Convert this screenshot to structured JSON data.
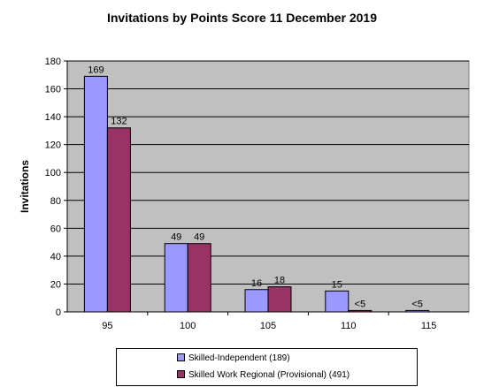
{
  "chart_data": {
    "type": "bar",
    "title": "Invitations by Points Score 11 December 2019",
    "xlabel": "",
    "ylabel": "Invitations",
    "categories": [
      "95",
      "100",
      "105",
      "110",
      "115"
    ],
    "series": [
      {
        "name": "Skilled-Independent (189)",
        "color": "#9999ff",
        "values": [
          169,
          49,
          16,
          15,
          1
        ],
        "labels": [
          "169",
          "49",
          "16",
          "15",
          "<5"
        ]
      },
      {
        "name": "Skilled Work Regional (Provisional) (491)",
        "color": "#993366",
        "values": [
          132,
          49,
          18,
          1,
          0
        ],
        "labels": [
          "132",
          "49",
          "18",
          "<5",
          ""
        ]
      }
    ],
    "ylim": [
      0,
      180
    ],
    "yticks": [
      0,
      20,
      40,
      60,
      80,
      100,
      120,
      140,
      160,
      180
    ],
    "grid": true,
    "legend_position": "bottom",
    "plot_background": "#c0c0c0"
  }
}
